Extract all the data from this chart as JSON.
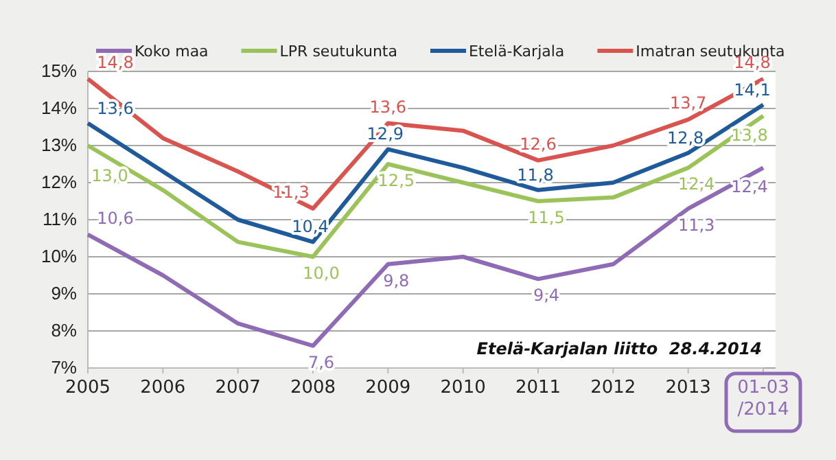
{
  "chart_data": {
    "type": "line",
    "categories": [
      "2005",
      "2006",
      "2007",
      "2008",
      "2009",
      "2010",
      "2011",
      "2012",
      "2013",
      "01-03\n/2014"
    ],
    "ylim": [
      7,
      15
    ],
    "yticks": [
      {
        "value": 7,
        "label": "7%"
      },
      {
        "value": 8,
        "label": "8%"
      },
      {
        "value": 9,
        "label": "9%"
      },
      {
        "value": 10,
        "label": "10%"
      },
      {
        "value": 11,
        "label": "11%"
      },
      {
        "value": 12,
        "label": "12%"
      },
      {
        "value": 13,
        "label": "13%"
      },
      {
        "value": 14,
        "label": "14%"
      },
      {
        "value": 15,
        "label": "15%"
      }
    ],
    "grid": "y",
    "legend": "top",
    "marker": "none",
    "line_style": "solid",
    "series": [
      {
        "name": "Koko maa",
        "color": "#8e6bb4",
        "values": [
          10.6,
          9.5,
          8.2,
          7.6,
          9.8,
          10.0,
          9.4,
          9.8,
          11.3,
          12.4
        ],
        "value_labels": [
          "10,6",
          null,
          null,
          "7,6",
          "9,8",
          null,
          "9,4",
          null,
          "11,3",
          "12,4"
        ]
      },
      {
        "name": "LPR seutukunta",
        "color": "#9bc35a",
        "values": [
          13.0,
          11.8,
          10.4,
          10.0,
          12.5,
          12.0,
          11.5,
          11.6,
          12.4,
          13.8
        ],
        "value_labels": [
          "13,0",
          null,
          null,
          "10,0",
          "12,5",
          null,
          "11,5",
          null,
          "12,4",
          "13,8"
        ]
      },
      {
        "name": "Etelä-Karjala",
        "color": "#1f5a9a",
        "values": [
          13.6,
          12.3,
          11.0,
          10.4,
          12.9,
          12.4,
          11.8,
          12.0,
          12.8,
          14.1
        ],
        "value_labels": [
          "13,6",
          null,
          null,
          "10,4",
          "12,9",
          null,
          "11,8",
          null,
          "12,8",
          "14,1"
        ]
      },
      {
        "name": "Imatran seutukunta",
        "color": "#d9534f",
        "values": [
          14.8,
          13.2,
          12.3,
          11.3,
          13.6,
          13.4,
          12.6,
          13.0,
          13.7,
          14.8
        ],
        "value_labels": [
          "14,8",
          null,
          null,
          "11,3",
          "13,6",
          null,
          "12,6",
          null,
          "13,7",
          "14,8"
        ]
      }
    ],
    "annotations": [
      "Etelä-Karjalan liitto  28.4.2014"
    ]
  }
}
